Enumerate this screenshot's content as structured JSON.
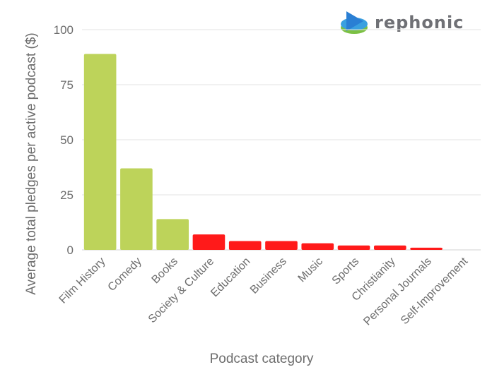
{
  "brand": {
    "name": "rephonic"
  },
  "colors": {
    "positive": "#bdd35a",
    "negative": "#ff1a1a",
    "grid": "#e3e3e3",
    "text": "#6d6d6d"
  },
  "chart_data": {
    "type": "bar",
    "xlabel": "Podcast category",
    "ylabel": "Average total pledges per active podcast ($)",
    "ylim": [
      0,
      100
    ],
    "yticks": [
      0,
      25,
      50,
      75,
      100
    ],
    "grid": true,
    "categories": [
      "Film History",
      "Comedy",
      "Books",
      "Society & Culture",
      "Education",
      "Business",
      "Music",
      "Sports",
      "Christianity",
      "Personal Journals",
      "Self-Improvement"
    ],
    "values": [
      89,
      37,
      14,
      7,
      4,
      4,
      3,
      2,
      2,
      1,
      0
    ],
    "bar_colors": [
      "#bdd35a",
      "#bdd35a",
      "#bdd35a",
      "#ff1a1a",
      "#ff1a1a",
      "#ff1a1a",
      "#ff1a1a",
      "#ff1a1a",
      "#ff1a1a",
      "#ff1a1a",
      "#ff1a1a"
    ]
  }
}
